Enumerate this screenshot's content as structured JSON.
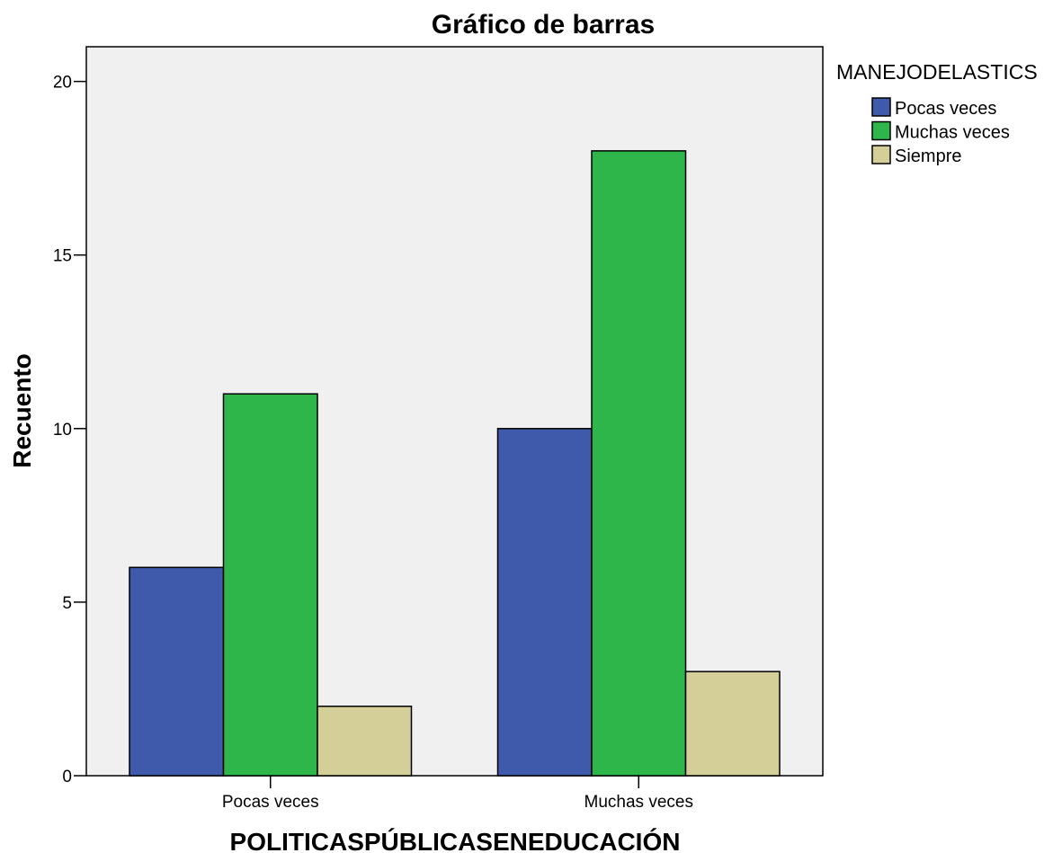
{
  "chart_data": {
    "type": "bar",
    "title": "Gráfico de barras",
    "xlabel": "POLITICASPÚBLICASENEDUCACIÓN",
    "ylabel": "Recuento",
    "categories": [
      "Pocas veces",
      "Muchas veces"
    ],
    "series": [
      {
        "name": "Pocas veces",
        "values": [
          6,
          10
        ],
        "color": "#3f5aab"
      },
      {
        "name": "Muchas veces",
        "values": [
          11,
          18
        ],
        "color": "#2fb64a"
      },
      {
        "name": "Siempre",
        "values": [
          2,
          3
        ],
        "color": "#d4ce99"
      }
    ],
    "ylim": [
      0,
      21
    ],
    "yticks": [
      0,
      5,
      10,
      15,
      20
    ],
    "legend_title": "MANEJODELASTICS",
    "legend_position": "right",
    "plot_background": "#f0f0f0",
    "grid": false
  }
}
